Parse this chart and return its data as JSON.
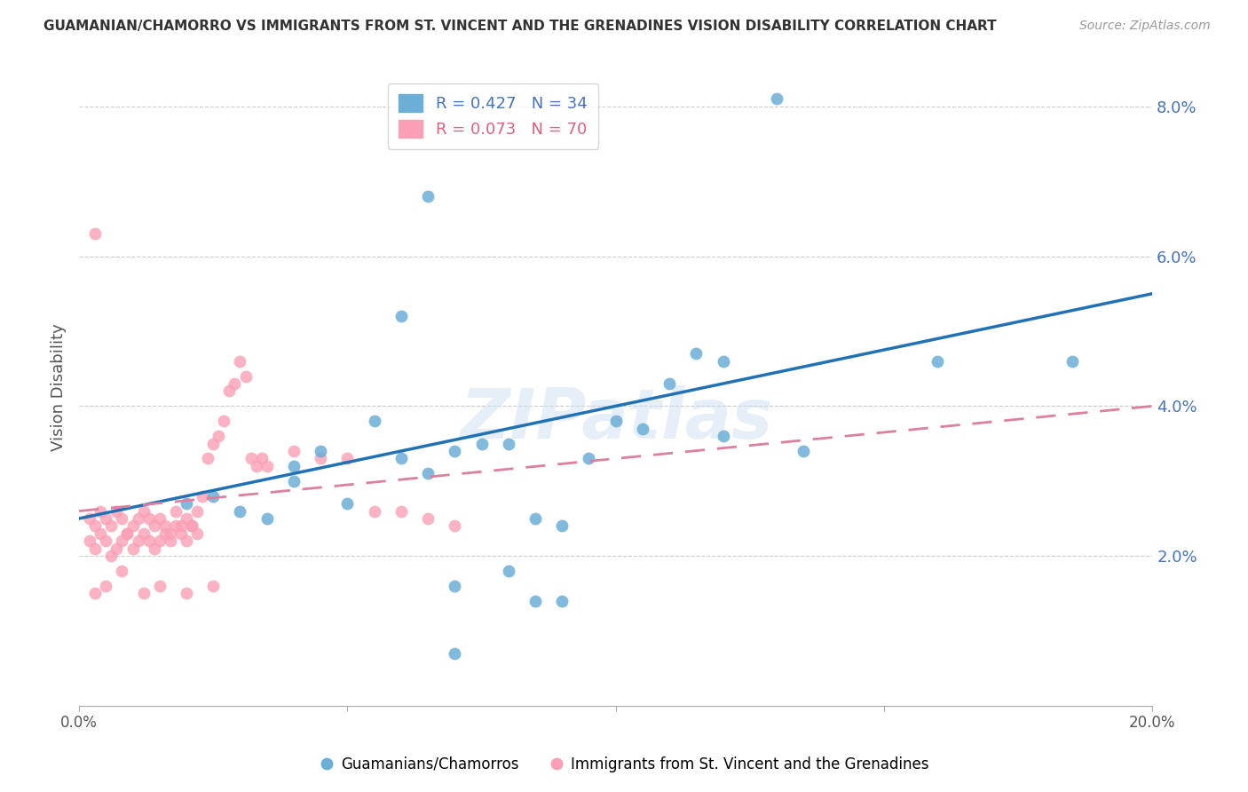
{
  "title": "GUAMANIAN/CHAMORRO VS IMMIGRANTS FROM ST. VINCENT AND THE GRENADINES VISION DISABILITY CORRELATION CHART",
  "source": "Source: ZipAtlas.com",
  "ylabel": "Vision Disability",
  "xmin": 0.0,
  "xmax": 0.2,
  "ymin": 0.0,
  "ymax": 0.085,
  "yticks": [
    0.0,
    0.02,
    0.04,
    0.06,
    0.08
  ],
  "ytick_labels": [
    "",
    "2.0%",
    "4.0%",
    "6.0%",
    "8.0%"
  ],
  "legend_blue_r": "R = 0.427",
  "legend_blue_n": "N = 34",
  "legend_pink_r": "R = 0.073",
  "legend_pink_n": "N = 70",
  "blue_color": "#6baed6",
  "pink_color": "#fa9fb5",
  "blue_line_color": "#2171b5",
  "pink_line_color": "#de7fa0",
  "watermark": "ZIPatlas",
  "blue_line_x0": 0.0,
  "blue_line_y0": 0.025,
  "blue_line_x1": 0.2,
  "blue_line_y1": 0.055,
  "pink_line_x0": 0.0,
  "pink_line_y0": 0.026,
  "pink_line_x1": 0.2,
  "pink_line_y1": 0.04,
  "blue_points_x": [
    0.02,
    0.025,
    0.03,
    0.035,
    0.04,
    0.04,
    0.045,
    0.05,
    0.055,
    0.06,
    0.065,
    0.07,
    0.075,
    0.08,
    0.085,
    0.09,
    0.095,
    0.1,
    0.105,
    0.11,
    0.115,
    0.12,
    0.06,
    0.065,
    0.07,
    0.08,
    0.085,
    0.09,
    0.12,
    0.135,
    0.16,
    0.185,
    0.13,
    0.07
  ],
  "blue_points_y": [
    0.027,
    0.028,
    0.026,
    0.025,
    0.032,
    0.03,
    0.034,
    0.027,
    0.038,
    0.033,
    0.031,
    0.034,
    0.035,
    0.035,
    0.025,
    0.024,
    0.033,
    0.038,
    0.037,
    0.043,
    0.047,
    0.046,
    0.052,
    0.068,
    0.016,
    0.018,
    0.014,
    0.014,
    0.036,
    0.034,
    0.046,
    0.046,
    0.081,
    0.007
  ],
  "pink_points_x": [
    0.002,
    0.003,
    0.004,
    0.005,
    0.006,
    0.007,
    0.008,
    0.009,
    0.01,
    0.011,
    0.012,
    0.013,
    0.014,
    0.015,
    0.016,
    0.017,
    0.018,
    0.019,
    0.02,
    0.021,
    0.022,
    0.002,
    0.003,
    0.004,
    0.005,
    0.006,
    0.007,
    0.008,
    0.009,
    0.01,
    0.011,
    0.012,
    0.013,
    0.014,
    0.015,
    0.016,
    0.017,
    0.018,
    0.019,
    0.02,
    0.021,
    0.022,
    0.023,
    0.024,
    0.025,
    0.026,
    0.027,
    0.028,
    0.029,
    0.03,
    0.031,
    0.032,
    0.033,
    0.034,
    0.035,
    0.04,
    0.045,
    0.05,
    0.055,
    0.06,
    0.065,
    0.07,
    0.003,
    0.005,
    0.008,
    0.012,
    0.015,
    0.02,
    0.025,
    0.003
  ],
  "pink_points_y": [
    0.025,
    0.024,
    0.026,
    0.025,
    0.024,
    0.026,
    0.025,
    0.023,
    0.024,
    0.025,
    0.026,
    0.025,
    0.024,
    0.025,
    0.024,
    0.023,
    0.026,
    0.024,
    0.025,
    0.024,
    0.026,
    0.022,
    0.021,
    0.023,
    0.022,
    0.02,
    0.021,
    0.022,
    0.023,
    0.021,
    0.022,
    0.023,
    0.022,
    0.021,
    0.022,
    0.023,
    0.022,
    0.024,
    0.023,
    0.022,
    0.024,
    0.023,
    0.028,
    0.033,
    0.035,
    0.036,
    0.038,
    0.042,
    0.043,
    0.046,
    0.044,
    0.033,
    0.032,
    0.033,
    0.032,
    0.034,
    0.033,
    0.033,
    0.026,
    0.026,
    0.025,
    0.024,
    0.015,
    0.016,
    0.018,
    0.015,
    0.016,
    0.015,
    0.016,
    0.063
  ]
}
